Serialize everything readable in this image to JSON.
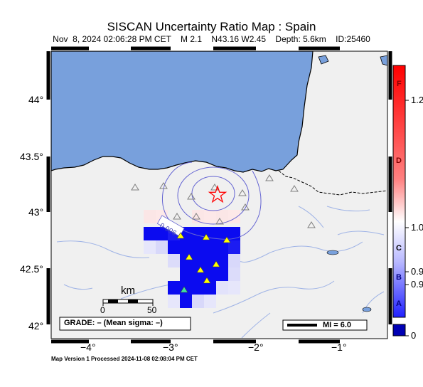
{
  "title": "SISCAN Uncertainty Ratio Map : Spain",
  "subtitle": "Nov  8, 2024 02:06:28 PM CET    M 2.1    N43.16 W2.45    Depth: 5.6km    ID:25460",
  "footer": "Map Version 1 Processed 2024-11-08 02:08:04 PM CET",
  "lat_labels": [
    "44°",
    "43.5°",
    "43°",
    "42.5°",
    "42°"
  ],
  "lon_labels": [
    "−4°",
    "−3°",
    "−2°",
    "−1°"
  ],
  "scale_bar": {
    "unit": "km",
    "ticks": [
      "0",
      "50"
    ]
  },
  "contour_label": "0.006",
  "grade_box": "GRADE: – (Mean sigma: –)",
  "mi_box": "MI = 6.0",
  "colorbar": {
    "grades": [
      "F",
      "D",
      "C",
      "B",
      "A"
    ],
    "values": [
      "1.2",
      "1.0",
      "0.9",
      "0.9",
      "0"
    ],
    "colors": {
      "top": "#ff0000",
      "mid": "#ffffff",
      "low": "#0000ff",
      "bottom": "#0000b4"
    }
  },
  "colors": {
    "sea": "#78a0dc",
    "land": "#f0f0f0",
    "rivers": "#a0b4e6",
    "contour": "#6464d2",
    "epicenter": "#ff0000"
  }
}
